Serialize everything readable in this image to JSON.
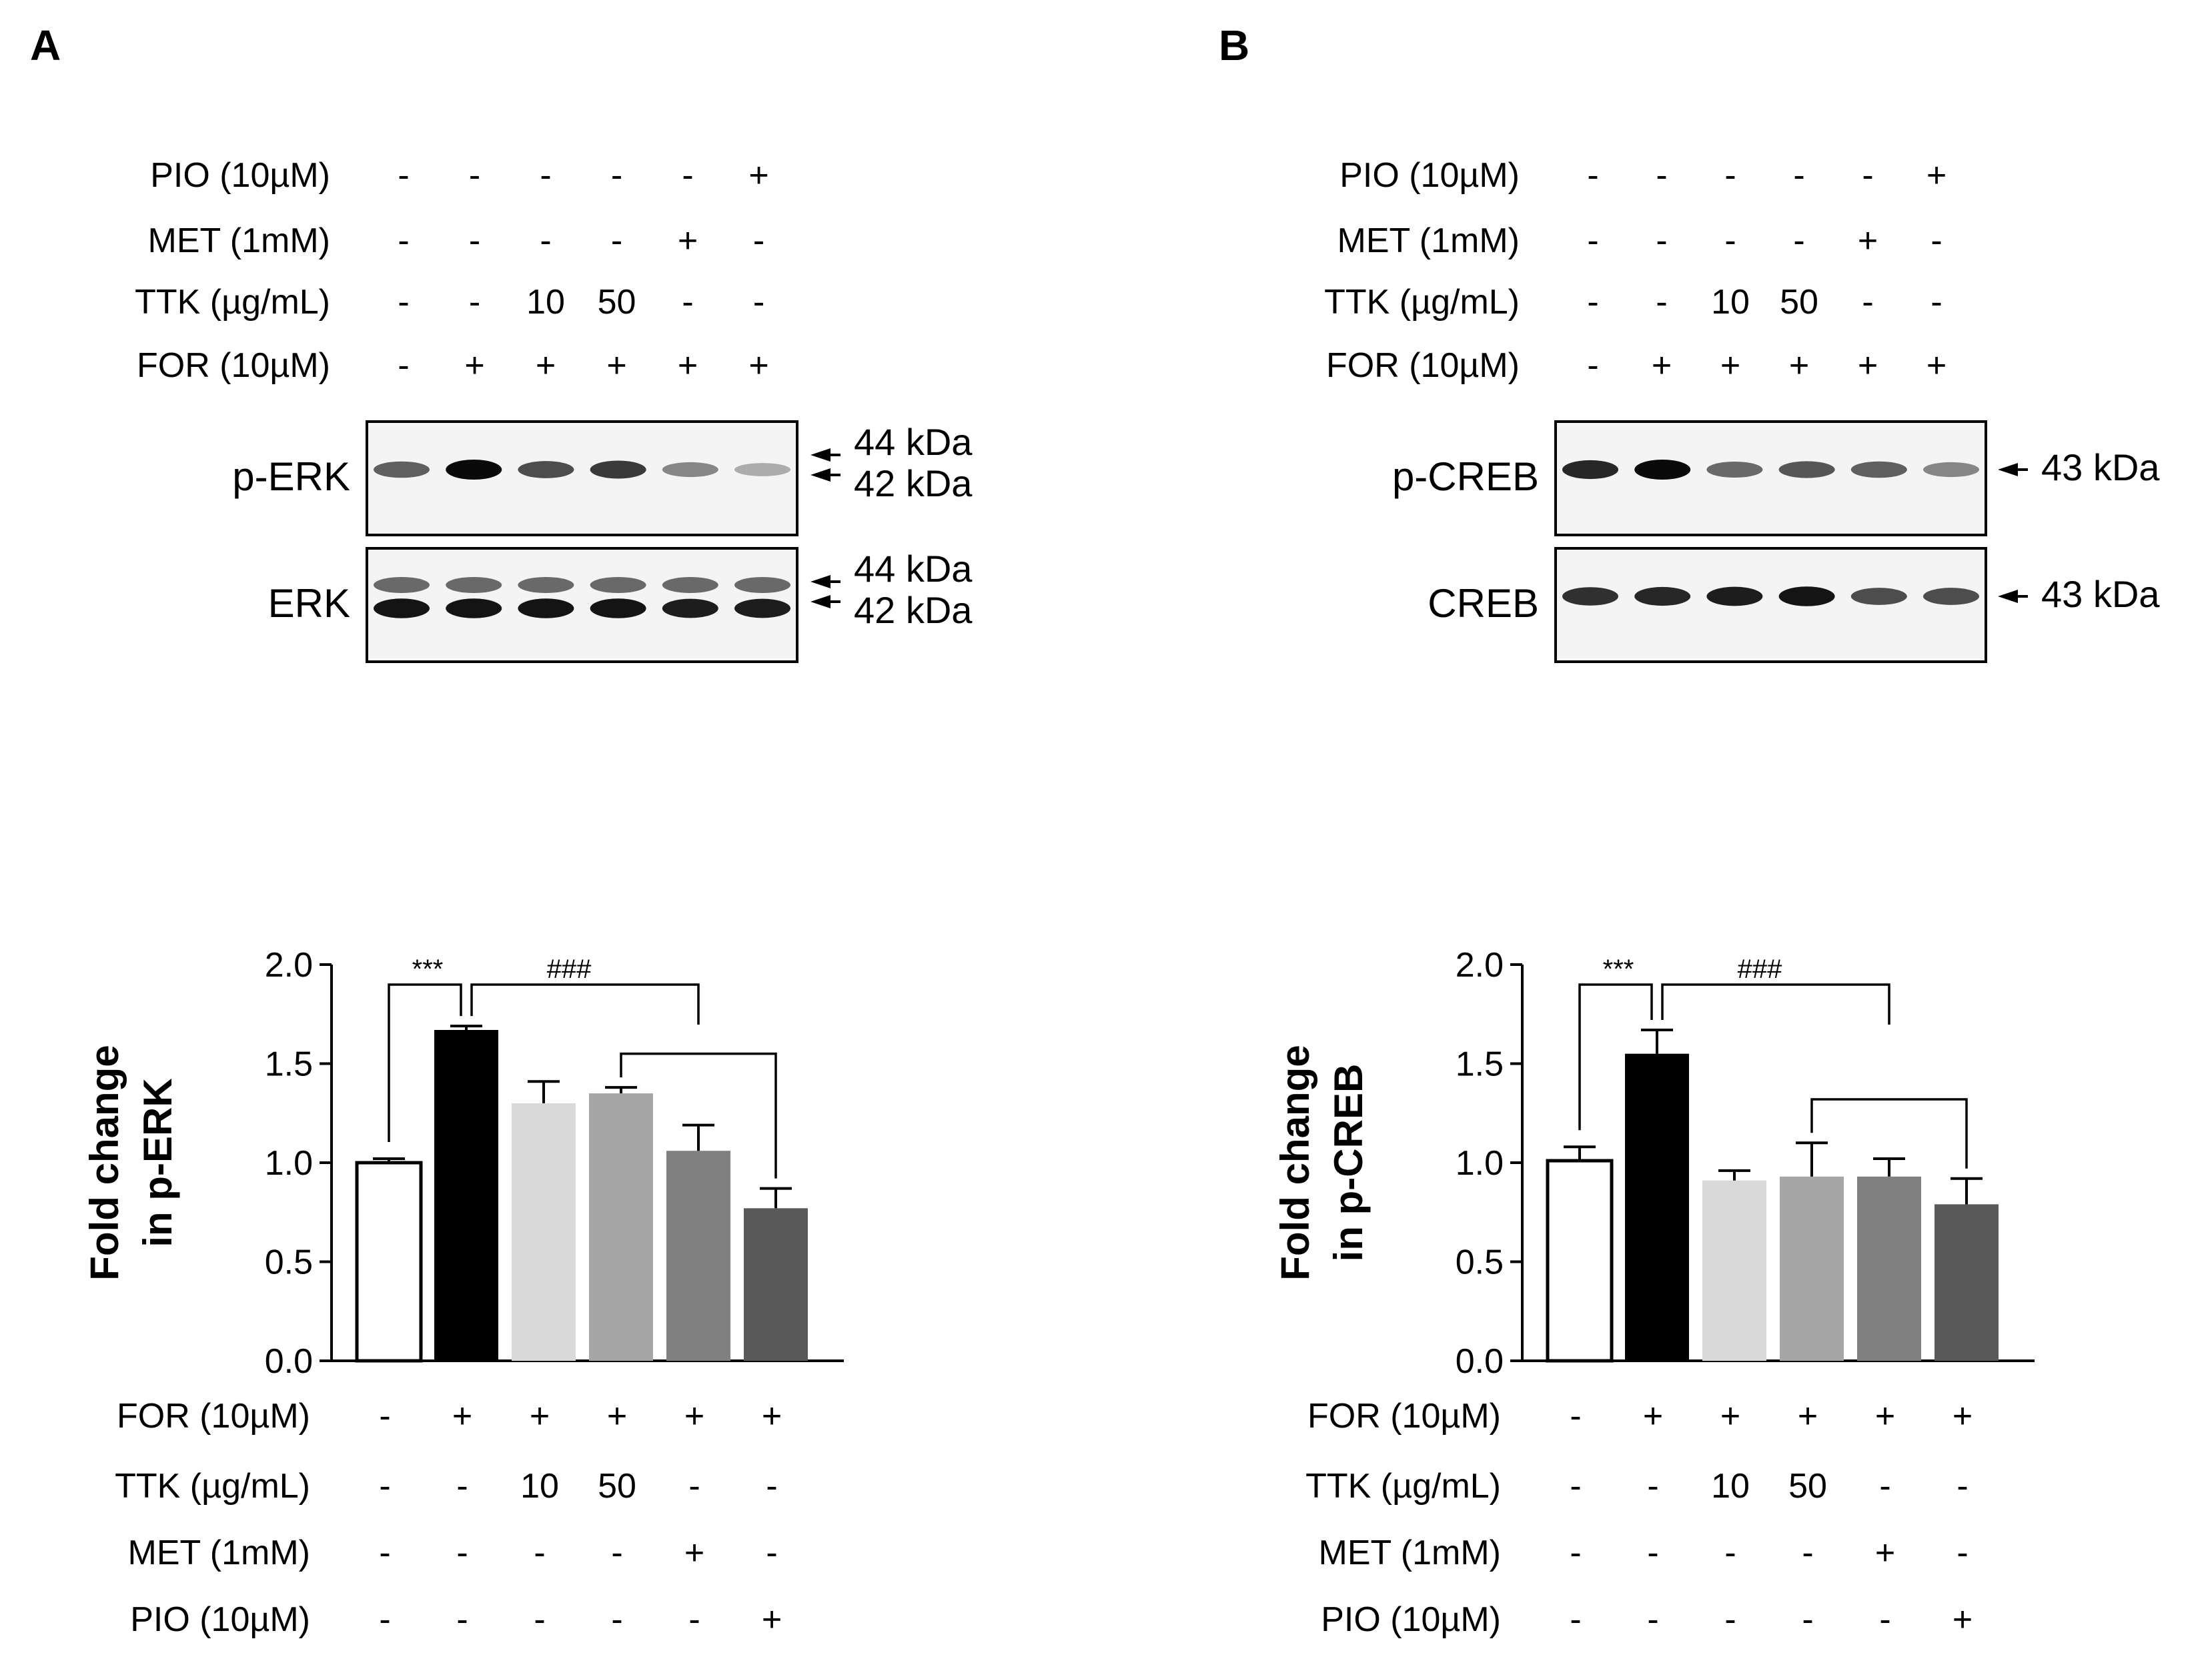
{
  "panels": [
    {
      "letter": "A",
      "treatments_top": [
        {
          "label": "PIO (10µM)",
          "values": [
            "-",
            "-",
            "-",
            "-",
            "-",
            "+"
          ]
        },
        {
          "label": "MET (1mM)",
          "values": [
            "-",
            "-",
            "-",
            "-",
            "+",
            "-"
          ]
        },
        {
          "label": "TTK (µg/mL)",
          "values": [
            "-",
            "-",
            "10",
            "50",
            "-",
            "-"
          ]
        },
        {
          "label": "FOR (10µM)",
          "values": [
            "-",
            "+",
            "+",
            "+",
            "+",
            "+"
          ]
        }
      ],
      "blots": [
        {
          "name": "p-ERK",
          "markers": [
            "44 kDa",
            "42 kDa"
          ]
        },
        {
          "name": "ERK",
          "markers": [
            "44 kDa",
            "42 kDa"
          ]
        }
      ],
      "treatments_bottom": [
        {
          "label": "FOR (10µM)",
          "values": [
            "-",
            "+",
            "+",
            "+",
            "+",
            "+"
          ]
        },
        {
          "label": "TTK (µg/mL)",
          "values": [
            "-",
            "-",
            "10",
            "50",
            "-",
            "-"
          ]
        },
        {
          "label": "MET (1mM)",
          "values": [
            "-",
            "-",
            "-",
            "-",
            "+",
            "-"
          ]
        },
        {
          "label": "PIO (10µM)",
          "values": [
            "-",
            "-",
            "-",
            "-",
            "-",
            "+"
          ]
        }
      ]
    },
    {
      "letter": "B",
      "treatments_top": [
        {
          "label": "PIO (10µM)",
          "values": [
            "-",
            "-",
            "-",
            "-",
            "-",
            "+"
          ]
        },
        {
          "label": "MET (1mM)",
          "values": [
            "-",
            "-",
            "-",
            "-",
            "+",
            "-"
          ]
        },
        {
          "label": "TTK (µg/mL)",
          "values": [
            "-",
            "-",
            "10",
            "50",
            "-",
            "-"
          ]
        },
        {
          "label": "FOR (10µM)",
          "values": [
            "-",
            "+",
            "+",
            "+",
            "+",
            "+"
          ]
        }
      ],
      "blots": [
        {
          "name": "p-CREB",
          "markers": [
            "43 kDa"
          ]
        },
        {
          "name": "CREB",
          "markers": [
            "43 kDa"
          ]
        }
      ],
      "treatments_bottom": [
        {
          "label": "FOR (10µM)",
          "values": [
            "-",
            "+",
            "+",
            "+",
            "+",
            "+"
          ]
        },
        {
          "label": "TTK (µg/mL)",
          "values": [
            "-",
            "-",
            "10",
            "50",
            "-",
            "-"
          ]
        },
        {
          "label": "MET (1mM)",
          "values": [
            "-",
            "-",
            "-",
            "-",
            "+",
            "-"
          ]
        },
        {
          "label": "PIO (10µM)",
          "values": [
            "-",
            "-",
            "-",
            "-",
            "-",
            "+"
          ]
        }
      ]
    }
  ],
  "chart_data": [
    {
      "type": "bar",
      "panel": "A",
      "ylabel": [
        "Fold change",
        "in p-ERK"
      ],
      "ylim": [
        0,
        2.0
      ],
      "yticks": [
        "0.0",
        "0.5",
        "1.0",
        "1.5",
        "2.0"
      ],
      "values": [
        1.0,
        1.67,
        1.3,
        1.35,
        1.06,
        0.77
      ],
      "errors": [
        0.02,
        0.02,
        0.11,
        0.03,
        0.13,
        0.1
      ],
      "colors": [
        "#ffffff",
        "#000000",
        "#d9d9d9",
        "#a6a6a6",
        "#808080",
        "#595959"
      ],
      "significance": [
        "***",
        "###"
      ]
    },
    {
      "type": "bar",
      "panel": "B",
      "ylabel": [
        "Fold change",
        "in p-CREB"
      ],
      "ylim": [
        0,
        2.0
      ],
      "yticks": [
        "0.0",
        "0.5",
        "1.0",
        "1.5",
        "2.0"
      ],
      "values": [
        1.01,
        1.55,
        0.91,
        0.93,
        0.93,
        0.79
      ],
      "errors": [
        0.07,
        0.12,
        0.05,
        0.17,
        0.09,
        0.13
      ],
      "colors": [
        "#ffffff",
        "#000000",
        "#d9d9d9",
        "#a6a6a6",
        "#808080",
        "#595959"
      ],
      "significance": [
        "***",
        "###"
      ]
    }
  ],
  "blot_intensity": [
    {
      "p-ERK": [
        [
          0.55,
          1.0,
          0.65,
          0.75,
          0.35,
          0.15
        ]
      ],
      "ERK": [
        [
          0.5,
          0.5,
          0.5,
          0.5,
          0.5,
          0.5
        ],
        [
          0.95,
          0.95,
          0.95,
          0.95,
          0.9,
          0.9
        ]
      ]
    },
    {
      "p-CREB": [
        [
          0.85,
          1.0,
          0.5,
          0.6,
          0.55,
          0.35
        ]
      ],
      "CREB": [
        [
          0.8,
          0.85,
          0.9,
          0.95,
          0.65,
          0.65
        ]
      ]
    }
  ]
}
